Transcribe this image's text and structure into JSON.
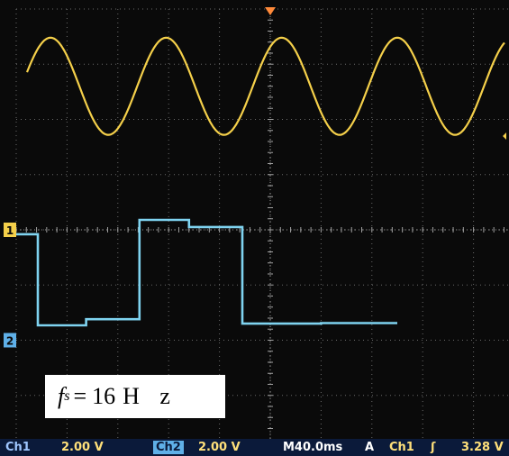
{
  "chart_data": {
    "type": "line",
    "title": "",
    "xlabel": "",
    "ylabel": "",
    "grid": true,
    "divisions": {
      "x": 10,
      "y": 8
    },
    "xlim": [
      -200,
      200
    ],
    "ylim": [
      -8,
      8
    ],
    "series": [
      {
        "name": "Ch1",
        "kind": "sine",
        "color": "#f5d04a",
        "offset_div": 2.6,
        "amplitude_div": 0.88,
        "period_ms": 91,
        "peak_times_ms": [
          -173,
          -82,
          9,
          100
        ]
      },
      {
        "name": "Ch2",
        "kind": "step",
        "color": "#7fd3f0",
        "points": [
          [
            -200,
            -0.08
          ],
          [
            -183,
            -0.08
          ],
          [
            -183,
            -1.73
          ],
          [
            -145,
            -1.73
          ],
          [
            -145,
            -1.62
          ],
          [
            -103,
            -1.62
          ],
          [
            -103,
            0.18
          ],
          [
            -64,
            0.18
          ],
          [
            -64,
            0.05
          ],
          [
            -22,
            0.05
          ],
          [
            -22,
            -1.7
          ],
          [
            40,
            -1.7
          ],
          [
            40,
            -1.69
          ],
          [
            100,
            -1.69
          ]
        ]
      }
    ]
  },
  "colors": {
    "grid": "#6a6a6a",
    "trigger_marker": "#ff8a3a",
    "ch1_marker": "#f5d04a",
    "ch2_marker": "#5fb0e8"
  },
  "markers": {
    "ch1": "1",
    "ch2": "2"
  },
  "annotation": {
    "symbol": "f",
    "subscript": "s",
    "equals": "=",
    "value": "16",
    "unit": "H z"
  },
  "status": {
    "ch1_label": "Ch1",
    "ch1_scale": "2.00 V",
    "ch2_label": "Ch2",
    "ch2_scale": "2.00 V",
    "timebase": "M40.0ms",
    "trigger_mode": "A",
    "trigger_source": "Ch1",
    "trigger_slope": "ʃ",
    "trigger_level": "3.28 V"
  }
}
